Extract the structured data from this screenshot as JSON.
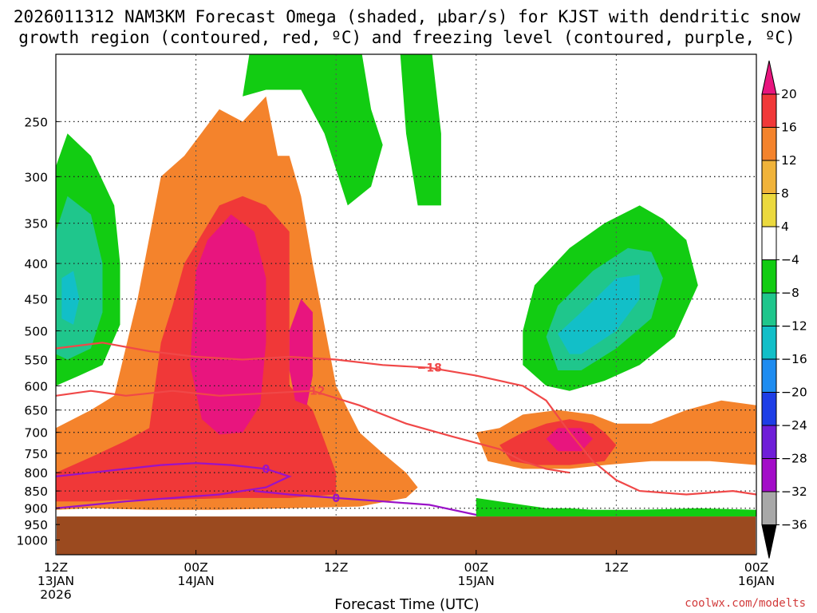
{
  "title_line1": "2026011312 NAM3KM Forecast Omega (shaded, μbar/s) for KJST with dendritic snow",
  "title_line2": "growth region (contoured, red, ºC) and freezing level (contoured, purple, ºC)",
  "credit": "coolwx.com/modelts",
  "chart_data": {
    "type": "heatmap",
    "title": "2026011312 NAM3KM Forecast Omega (shaded, μbar/s) for KJST with dendritic snow growth region (contoured, red, ºC) and freezing level (contoured, purple, ºC)",
    "xlabel": "Forecast Time (UTC)",
    "ylabel": "",
    "x_ticks": [
      {
        "hour": 0,
        "lines": [
          "12Z",
          "13JAN",
          "2026"
        ]
      },
      {
        "hour": 12,
        "lines": [
          "00Z",
          "14JAN"
        ]
      },
      {
        "hour": 24,
        "lines": [
          "12Z"
        ]
      },
      {
        "hour": 36,
        "lines": [
          "00Z",
          "15JAN"
        ]
      },
      {
        "hour": 48,
        "lines": [
          "12Z"
        ]
      },
      {
        "hour": 60,
        "lines": [
          "00Z",
          "16JAN"
        ]
      }
    ],
    "xlim": [
      0,
      60
    ],
    "y_ticks": [
      250,
      300,
      350,
      400,
      450,
      500,
      550,
      600,
      650,
      700,
      750,
      800,
      850,
      900,
      950,
      1000
    ],
    "ylim": [
      200,
      1050
    ],
    "y_scale": "log-pressure (inverted)",
    "surface_pressure": 925,
    "grid": true,
    "colorbar": {
      "labels": [
        "20",
        "16",
        "12",
        "8",
        "4",
        "−4",
        "−8",
        "−12",
        "−16",
        "−20",
        "−24",
        "−28",
        "−32",
        "−36"
      ],
      "colors": [
        "#e8157e",
        "#f03838",
        "#f4832c",
        "#f0b33a",
        "#ebd93e",
        "#ffffff",
        "#12cc12",
        "#1fc68c",
        "#12bfc8",
        "#1e8cf0",
        "#1e3ee6",
        "#6f1ed8",
        "#a30cc8",
        "#a8a8a8"
      ]
    },
    "omega_regions": [
      {
        "name": "orange_lower",
        "value": 12,
        "points": [
          [
            0,
            690
          ],
          [
            3,
            650
          ],
          [
            5,
            620
          ],
          [
            7,
            450
          ],
          [
            9,
            300
          ],
          [
            11,
            280
          ],
          [
            14,
            240
          ],
          [
            16,
            250
          ],
          [
            18,
            230
          ],
          [
            19,
            280
          ],
          [
            20,
            280
          ],
          [
            21,
            320
          ],
          [
            22,
            400
          ],
          [
            24,
            600
          ],
          [
            26,
            700
          ],
          [
            28,
            750
          ],
          [
            30,
            800
          ],
          [
            31,
            840
          ],
          [
            30,
            870
          ],
          [
            26,
            895
          ],
          [
            20,
            900
          ],
          [
            14,
            905
          ],
          [
            8,
            905
          ],
          [
            3,
            900
          ],
          [
            0,
            905
          ]
        ]
      },
      {
        "name": "orange_east",
        "value": 12,
        "points": [
          [
            36,
            700
          ],
          [
            38,
            690
          ],
          [
            40,
            660
          ],
          [
            43,
            650
          ],
          [
            46,
            660
          ],
          [
            48,
            680
          ],
          [
            51,
            680
          ],
          [
            54,
            650
          ],
          [
            57,
            630
          ],
          [
            60,
            640
          ],
          [
            60,
            780
          ],
          [
            56,
            770
          ],
          [
            51,
            770
          ],
          [
            47,
            780
          ],
          [
            44,
            790
          ],
          [
            40,
            790
          ],
          [
            37,
            770
          ]
        ]
      },
      {
        "name": "red_west",
        "value": 16,
        "points": [
          [
            0,
            800
          ],
          [
            3,
            760
          ],
          [
            6,
            720
          ],
          [
            8,
            690
          ],
          [
            9,
            520
          ],
          [
            10,
            460
          ],
          [
            11,
            400
          ],
          [
            14,
            330
          ],
          [
            16,
            320
          ],
          [
            18,
            330
          ],
          [
            20,
            360
          ],
          [
            20,
            600
          ],
          [
            22,
            650
          ],
          [
            23,
            720
          ],
          [
            24,
            800
          ],
          [
            24,
            860
          ],
          [
            20,
            870
          ],
          [
            15,
            870
          ],
          [
            10,
            875
          ],
          [
            6,
            875
          ],
          [
            3,
            880
          ],
          [
            0,
            880
          ]
        ]
      },
      {
        "name": "red_east",
        "value": 16,
        "points": [
          [
            38,
            730
          ],
          [
            40,
            700
          ],
          [
            42,
            680
          ],
          [
            44,
            670
          ],
          [
            46,
            680
          ],
          [
            47,
            700
          ],
          [
            48,
            730
          ],
          [
            47,
            770
          ],
          [
            44,
            780
          ],
          [
            41,
            780
          ],
          [
            39,
            770
          ]
        ]
      },
      {
        "name": "magenta_core",
        "value": 20,
        "points": [
          [
            12,
            410
          ],
          [
            13,
            370
          ],
          [
            15,
            340
          ],
          [
            17,
            360
          ],
          [
            18,
            420
          ],
          [
            18,
            520
          ],
          [
            17.5,
            640
          ],
          [
            16,
            700
          ],
          [
            14,
            705
          ],
          [
            12.5,
            670
          ],
          [
            11.5,
            560
          ]
        ]
      },
      {
        "name": "magenta_secondary",
        "value": 20,
        "points": [
          [
            20,
            500
          ],
          [
            21,
            450
          ],
          [
            22,
            470
          ],
          [
            22,
            580
          ],
          [
            21.5,
            640
          ],
          [
            20.5,
            630
          ],
          [
            20,
            570
          ]
        ]
      },
      {
        "name": "magenta_east",
        "value": 20,
        "points": [
          [
            42,
            715
          ],
          [
            43,
            690
          ],
          [
            45,
            690
          ],
          [
            46,
            715
          ],
          [
            45,
            745
          ],
          [
            43,
            745
          ]
        ]
      },
      {
        "name": "green_west",
        "value": -8,
        "points": [
          [
            0,
            290
          ],
          [
            1,
            260
          ],
          [
            3,
            280
          ],
          [
            5,
            330
          ],
          [
            5.5,
            400
          ],
          [
            5.5,
            490
          ],
          [
            4,
            560
          ],
          [
            2,
            580
          ],
          [
            0,
            600
          ]
        ]
      },
      {
        "name": "teal_west",
        "value": -12,
        "points": [
          [
            0,
            360
          ],
          [
            1,
            320
          ],
          [
            3,
            340
          ],
          [
            4,
            400
          ],
          [
            4,
            470
          ],
          [
            3,
            530
          ],
          [
            1,
            550
          ],
          [
            0,
            540
          ]
        ]
      },
      {
        "name": "cyan_west",
        "value": -16,
        "points": [
          [
            0.5,
            420
          ],
          [
            1.5,
            410
          ],
          [
            2,
            450
          ],
          [
            1.5,
            490
          ],
          [
            0.5,
            480
          ]
        ]
      },
      {
        "name": "green_east",
        "value": -8,
        "points": [
          [
            40,
            500
          ],
          [
            41,
            430
          ],
          [
            44,
            380
          ],
          [
            47,
            350
          ],
          [
            50,
            330
          ],
          [
            52,
            345
          ],
          [
            54,
            370
          ],
          [
            55,
            430
          ],
          [
            53,
            510
          ],
          [
            50,
            560
          ],
          [
            47,
            590
          ],
          [
            44,
            610
          ],
          [
            42,
            600
          ],
          [
            40,
            560
          ]
        ]
      },
      {
        "name": "teal_east",
        "value": -12,
        "points": [
          [
            42,
            510
          ],
          [
            43,
            460
          ],
          [
            46,
            410
          ],
          [
            49,
            380
          ],
          [
            51,
            385
          ],
          [
            52,
            420
          ],
          [
            51,
            480
          ],
          [
            48,
            530
          ],
          [
            45,
            570
          ],
          [
            43,
            570
          ]
        ]
      },
      {
        "name": "cyan_east",
        "value": -16,
        "points": [
          [
            43,
            505
          ],
          [
            45,
            470
          ],
          [
            48,
            420
          ],
          [
            50,
            415
          ],
          [
            50,
            450
          ],
          [
            48,
            500
          ],
          [
            45,
            540
          ],
          [
            44,
            540
          ]
        ]
      },
      {
        "name": "green_top",
        "value": -8,
        "points": [
          [
            16,
            230
          ],
          [
            17,
            180
          ],
          [
            20,
            165
          ],
          [
            24,
            170
          ],
          [
            26,
            190
          ],
          [
            27,
            240
          ],
          [
            28,
            270
          ],
          [
            27,
            310
          ],
          [
            25,
            330
          ],
          [
            23,
            260
          ],
          [
            21,
            225
          ],
          [
            18,
            225
          ]
        ]
      },
      {
        "name": "green_right",
        "value": -8,
        "points": [
          [
            30,
            165
          ],
          [
            32,
            185
          ],
          [
            33,
            260
          ],
          [
            33,
            330
          ],
          [
            31,
            330
          ],
          [
            30,
            260
          ],
          [
            29.5,
            200
          ]
        ]
      },
      {
        "name": "green_bottom",
        "value": -8,
        "points": [
          [
            36,
            870
          ],
          [
            38,
            880
          ],
          [
            40,
            890
          ],
          [
            42,
            900
          ],
          [
            44,
            900
          ],
          [
            46,
            905
          ],
          [
            50,
            905
          ],
          [
            55,
            900
          ],
          [
            60,
            905
          ],
          [
            60,
            925
          ],
          [
            36,
            925
          ]
        ]
      }
    ],
    "contours": [
      {
        "label": "−18",
        "color": "#f04848",
        "points": [
          [
            0,
            530
          ],
          [
            4,
            520
          ],
          [
            8,
            535
          ],
          [
            12,
            545
          ],
          [
            16,
            550
          ],
          [
            20,
            545
          ],
          [
            24,
            550
          ],
          [
            28,
            560
          ],
          [
            32,
            565
          ],
          [
            36,
            580
          ],
          [
            40,
            600
          ],
          [
            42,
            630
          ],
          [
            44,
            700
          ],
          [
            46,
            770
          ],
          [
            48,
            820
          ],
          [
            50,
            850
          ],
          [
            54,
            860
          ],
          [
            58,
            850
          ],
          [
            60,
            860
          ]
        ]
      },
      {
        "label": "−12",
        "color": "#f04848",
        "points": [
          [
            0,
            620
          ],
          [
            3,
            610
          ],
          [
            6,
            620
          ],
          [
            10,
            610
          ],
          [
            14,
            620
          ],
          [
            18,
            615
          ],
          [
            22,
            610
          ],
          [
            26,
            640
          ],
          [
            30,
            680
          ],
          [
            34,
            710
          ],
          [
            38,
            740
          ],
          [
            40,
            770
          ],
          [
            42,
            790
          ],
          [
            44,
            800
          ]
        ]
      },
      {
        "label": "0",
        "color": "#9a12c8",
        "points": [
          [
            0,
            810
          ],
          [
            3,
            800
          ],
          [
            6,
            790
          ],
          [
            9,
            780
          ],
          [
            12,
            775
          ],
          [
            15,
            780
          ],
          [
            18,
            790
          ],
          [
            20,
            810
          ],
          [
            18,
            840
          ],
          [
            14,
            860
          ],
          [
            10,
            870
          ],
          [
            6,
            880
          ],
          [
            3,
            890
          ],
          [
            0,
            900
          ]
        ]
      },
      {
        "label": "0",
        "color": "#9a12c8",
        "points": [
          [
            17,
            850
          ],
          [
            20,
            860
          ],
          [
            24,
            870
          ],
          [
            28,
            880
          ],
          [
            32,
            890
          ],
          [
            36,
            920
          ]
        ]
      }
    ]
  }
}
